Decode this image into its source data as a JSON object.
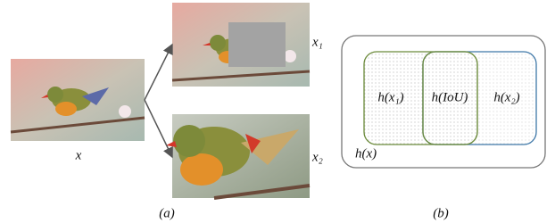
{
  "panel_a": {
    "input_label": "x",
    "view1_label": "x₁",
    "view2_label": "x₂",
    "caption": "(a)"
  },
  "panel_b": {
    "region_x1": "h(x₁)",
    "region_iou": "h(IoU)",
    "region_x2": "h(x₂)",
    "outer": "h(x)",
    "caption": "(b)"
  }
}
